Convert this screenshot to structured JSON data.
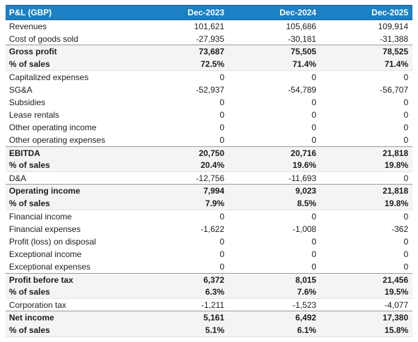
{
  "table": {
    "title": "P&L (GBP)",
    "columns": [
      "Dec-2023",
      "Dec-2024",
      "Dec-2025"
    ],
    "rows": [
      {
        "label": "Revenues",
        "values": [
          "101,621",
          "105,686",
          "109,914"
        ],
        "style": "normal"
      },
      {
        "label": "Cost of goods sold",
        "values": [
          "-27,935",
          "-30,181",
          "-31,388"
        ],
        "style": "normal"
      },
      {
        "label": "Gross profit",
        "values": [
          "73,687",
          "75,505",
          "78,525"
        ],
        "style": "subtotal"
      },
      {
        "label": "% of sales",
        "values": [
          "72.5%",
          "71.4%",
          "71.4%"
        ],
        "style": "percent"
      },
      {
        "label": "Capitalized expenses",
        "values": [
          "0",
          "0",
          "0"
        ],
        "style": "normal"
      },
      {
        "label": "SG&A",
        "values": [
          "-52,937",
          "-54,789",
          "-56,707"
        ],
        "style": "normal"
      },
      {
        "label": "Subsidies",
        "values": [
          "0",
          "0",
          "0"
        ],
        "style": "normal"
      },
      {
        "label": "Lease rentals",
        "values": [
          "0",
          "0",
          "0"
        ],
        "style": "normal"
      },
      {
        "label": "Other operating income",
        "values": [
          "0",
          "0",
          "0"
        ],
        "style": "normal"
      },
      {
        "label": "Other operating expenses",
        "values": [
          "0",
          "0",
          "0"
        ],
        "style": "normal"
      },
      {
        "label": "EBITDA",
        "values": [
          "20,750",
          "20,716",
          "21,818"
        ],
        "style": "subtotal"
      },
      {
        "label": "% of sales",
        "values": [
          "20.4%",
          "19.6%",
          "19.8%"
        ],
        "style": "percent"
      },
      {
        "label": "D&A",
        "values": [
          "-12,756",
          "-11,693",
          "0"
        ],
        "style": "normal"
      },
      {
        "label": "Operating income",
        "values": [
          "7,994",
          "9,023",
          "21,818"
        ],
        "style": "subtotal"
      },
      {
        "label": "% of sales",
        "values": [
          "7.9%",
          "8.5%",
          "19.8%"
        ],
        "style": "percent"
      },
      {
        "label": "Financial income",
        "values": [
          "0",
          "0",
          "0"
        ],
        "style": "normal"
      },
      {
        "label": "Financial expenses",
        "values": [
          "-1,622",
          "-1,008",
          "-362"
        ],
        "style": "normal"
      },
      {
        "label": "Profit (loss) on disposal",
        "values": [
          "0",
          "0",
          "0"
        ],
        "style": "normal"
      },
      {
        "label": "Exceptional income",
        "values": [
          "0",
          "0",
          "0"
        ],
        "style": "normal"
      },
      {
        "label": "Exceptional expenses",
        "values": [
          "0",
          "0",
          "0"
        ],
        "style": "normal"
      },
      {
        "label": "Profit before tax",
        "values": [
          "6,372",
          "8,015",
          "21,456"
        ],
        "style": "subtotal"
      },
      {
        "label": "% of sales",
        "values": [
          "6.3%",
          "7.6%",
          "19.5%"
        ],
        "style": "percent"
      },
      {
        "label": "Corporation tax",
        "values": [
          "-1,211",
          "-1,523",
          "-4,077"
        ],
        "style": "normal"
      },
      {
        "label": "Net income",
        "values": [
          "5,161",
          "6,492",
          "17,380"
        ],
        "style": "subtotal"
      },
      {
        "label": "% of sales",
        "values": [
          "5.1%",
          "6.1%",
          "15.8%"
        ],
        "style": "percent"
      }
    ],
    "colors": {
      "header_bg": "#1b80c4",
      "header_border": "#15629b",
      "header_text": "#ffffff",
      "subtotal_bg": "#f4f4f4",
      "subtotal_border_top": "#9a9a9a"
    }
  }
}
